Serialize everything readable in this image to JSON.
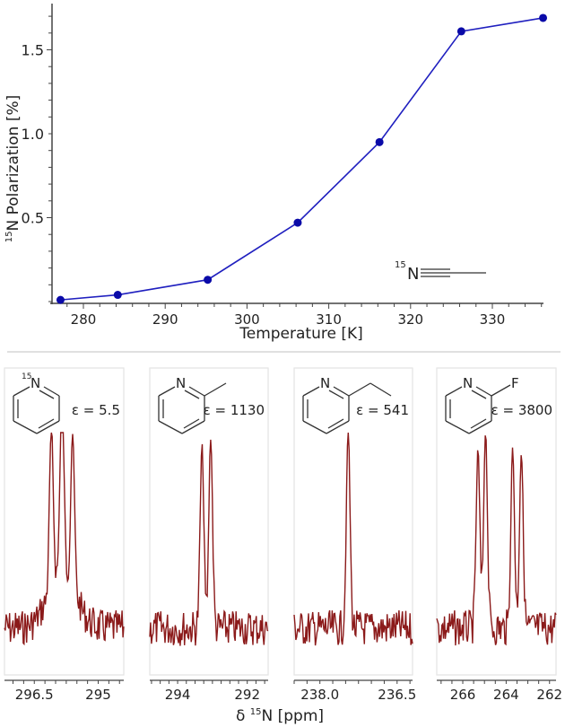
{
  "chart_data": [
    {
      "type": "line",
      "title": "",
      "xlabel": "Temperature [K]",
      "ylabel_sup": "15",
      "ylabel": "N Polarization [%]",
      "x": [
        277.2,
        284.2,
        295.2,
        306.2,
        316.2,
        326.2,
        336.2
      ],
      "series": [
        {
          "name": "15N polarization",
          "color": "#1f1fbf",
          "marker_color": "#0a0aa8",
          "values": [
            0.01,
            0.04,
            0.13,
            0.47,
            0.95,
            1.61,
            1.69
          ]
        }
      ],
      "xticks": [
        "280",
        "290",
        "300",
        "310",
        "320",
        "330"
      ],
      "yticks": [
        "0.5",
        "1.0",
        "1.5"
      ],
      "xlim": [
        276,
        337
      ],
      "ylim": [
        0,
        1.8
      ],
      "grid": false,
      "annotation": {
        "isotope": "15",
        "label": "N",
        "structure": "acetonitrile (N≡C–CH3)"
      }
    },
    {
      "type": "line",
      "subtype": "nmr-spectra-panels",
      "xlabel_prefix": "δ ",
      "xlabel_sup": "15",
      "xlabel": "N [ppm]",
      "line_color": "#8b1a1a",
      "panels": [
        {
          "molecule": "pyridine",
          "isotope_label": "15",
          "atom_label": "N",
          "epsilon": "ε = 5.5",
          "xticks": [
            "296.5",
            "295"
          ],
          "peaks_ppm": [
            296.1,
            295.85,
            295.6
          ],
          "peak_rel_heights": [
            0.82,
            1.0,
            0.78
          ]
        },
        {
          "molecule": "2-methylpyridine",
          "atom_label": "N",
          "epsilon": "ε = 1130",
          "xticks": [
            "294",
            "292"
          ],
          "peaks_ppm": [
            293.3,
            293.05
          ],
          "peak_rel_heights": [
            0.92,
            0.97
          ]
        },
        {
          "molecule": "2-ethylpyridine",
          "atom_label": "N",
          "epsilon": "ε = 541",
          "xticks": [
            "238.0",
            "236.5"
          ],
          "peaks_ppm": [
            237.45
          ],
          "peak_rel_heights": [
            1.0
          ]
        },
        {
          "molecule": "2-fluoropyridine",
          "atom_label": "N",
          "substituent_label": "F",
          "epsilon": "ε = 3800",
          "xticks": [
            "266",
            "264",
            "262"
          ],
          "peaks_ppm": [
            265.3,
            264.95,
            263.7,
            263.3
          ],
          "peak_rel_heights": [
            0.9,
            1.0,
            0.91,
            0.89
          ]
        }
      ]
    }
  ]
}
